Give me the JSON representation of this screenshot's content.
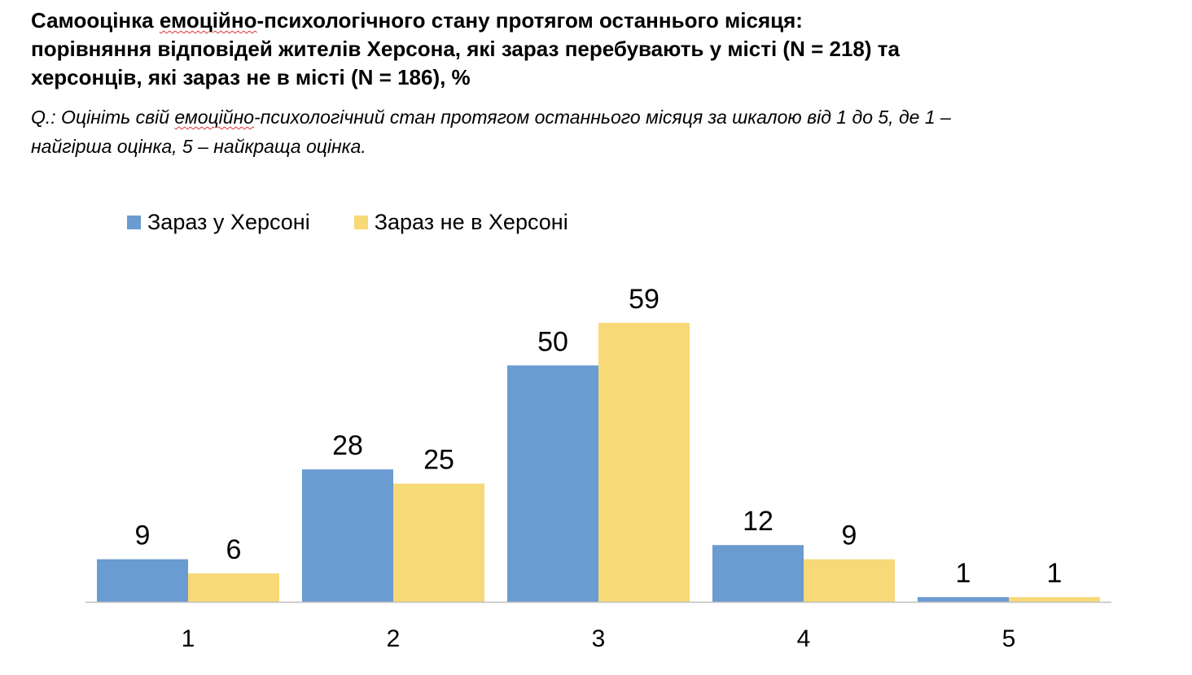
{
  "chart_data": {
    "type": "bar",
    "title_parts": [
      "Самооцінка ",
      "емоційно",
      "-психологічного стану протягом останнього місяця:"
    ],
    "title_line2": "порівняння відповідей жителів Херсона, які зараз перебувають у місті (N = 218) та",
    "title_line3": "херсонців, які зараз не в місті (N = 186), %",
    "subtitle_parts": [
      "Q.: Оцініть свій ",
      "емоційно",
      "-психологічний стан протягом останнього місяця за шкалою від 1 до 5, де 1 –"
    ],
    "subtitle_line2": "найгірша оцінка, 5 – найкраща оцінка.",
    "categories": [
      "1",
      "2",
      "3",
      "4",
      "5"
    ],
    "series": [
      {
        "name": "Зараз у Херсоні",
        "color": "#6a9bd1",
        "values": [
          9,
          28,
          50,
          12,
          1
        ]
      },
      {
        "name": "Зараз не в Херсоні",
        "color": "#f7d977",
        "values": [
          6,
          25,
          59,
          9,
          1
        ]
      }
    ],
    "ylim": [
      0,
      59
    ],
    "grid": false,
    "legend_position": "top-left"
  }
}
